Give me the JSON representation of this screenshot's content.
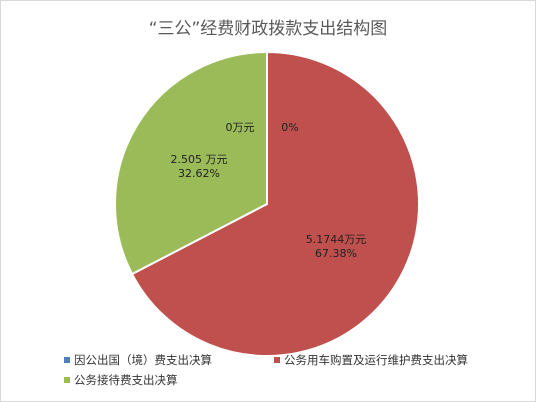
{
  "chart_data": {
    "type": "pie",
    "title": "“三公”经费财政拨款支出结构图",
    "series": [
      {
        "name": "因公出国（境）费支出决算",
        "value": 0,
        "value_label": "0万元",
        "percent_label": "0%",
        "color": "#4f81bd"
      },
      {
        "name": "公务用车购置及运行维护费支出决算",
        "value": 5.1744,
        "value_label": "5.1744万元",
        "percent_label": "67.38%",
        "color": "#c0504d"
      },
      {
        "name": "公务接待费支出决算",
        "value": 2.505,
        "value_label": "2.505 万元",
        "percent_label": "32.62%",
        "color": "#9bbb59"
      }
    ],
    "legend_position": "bottom"
  }
}
